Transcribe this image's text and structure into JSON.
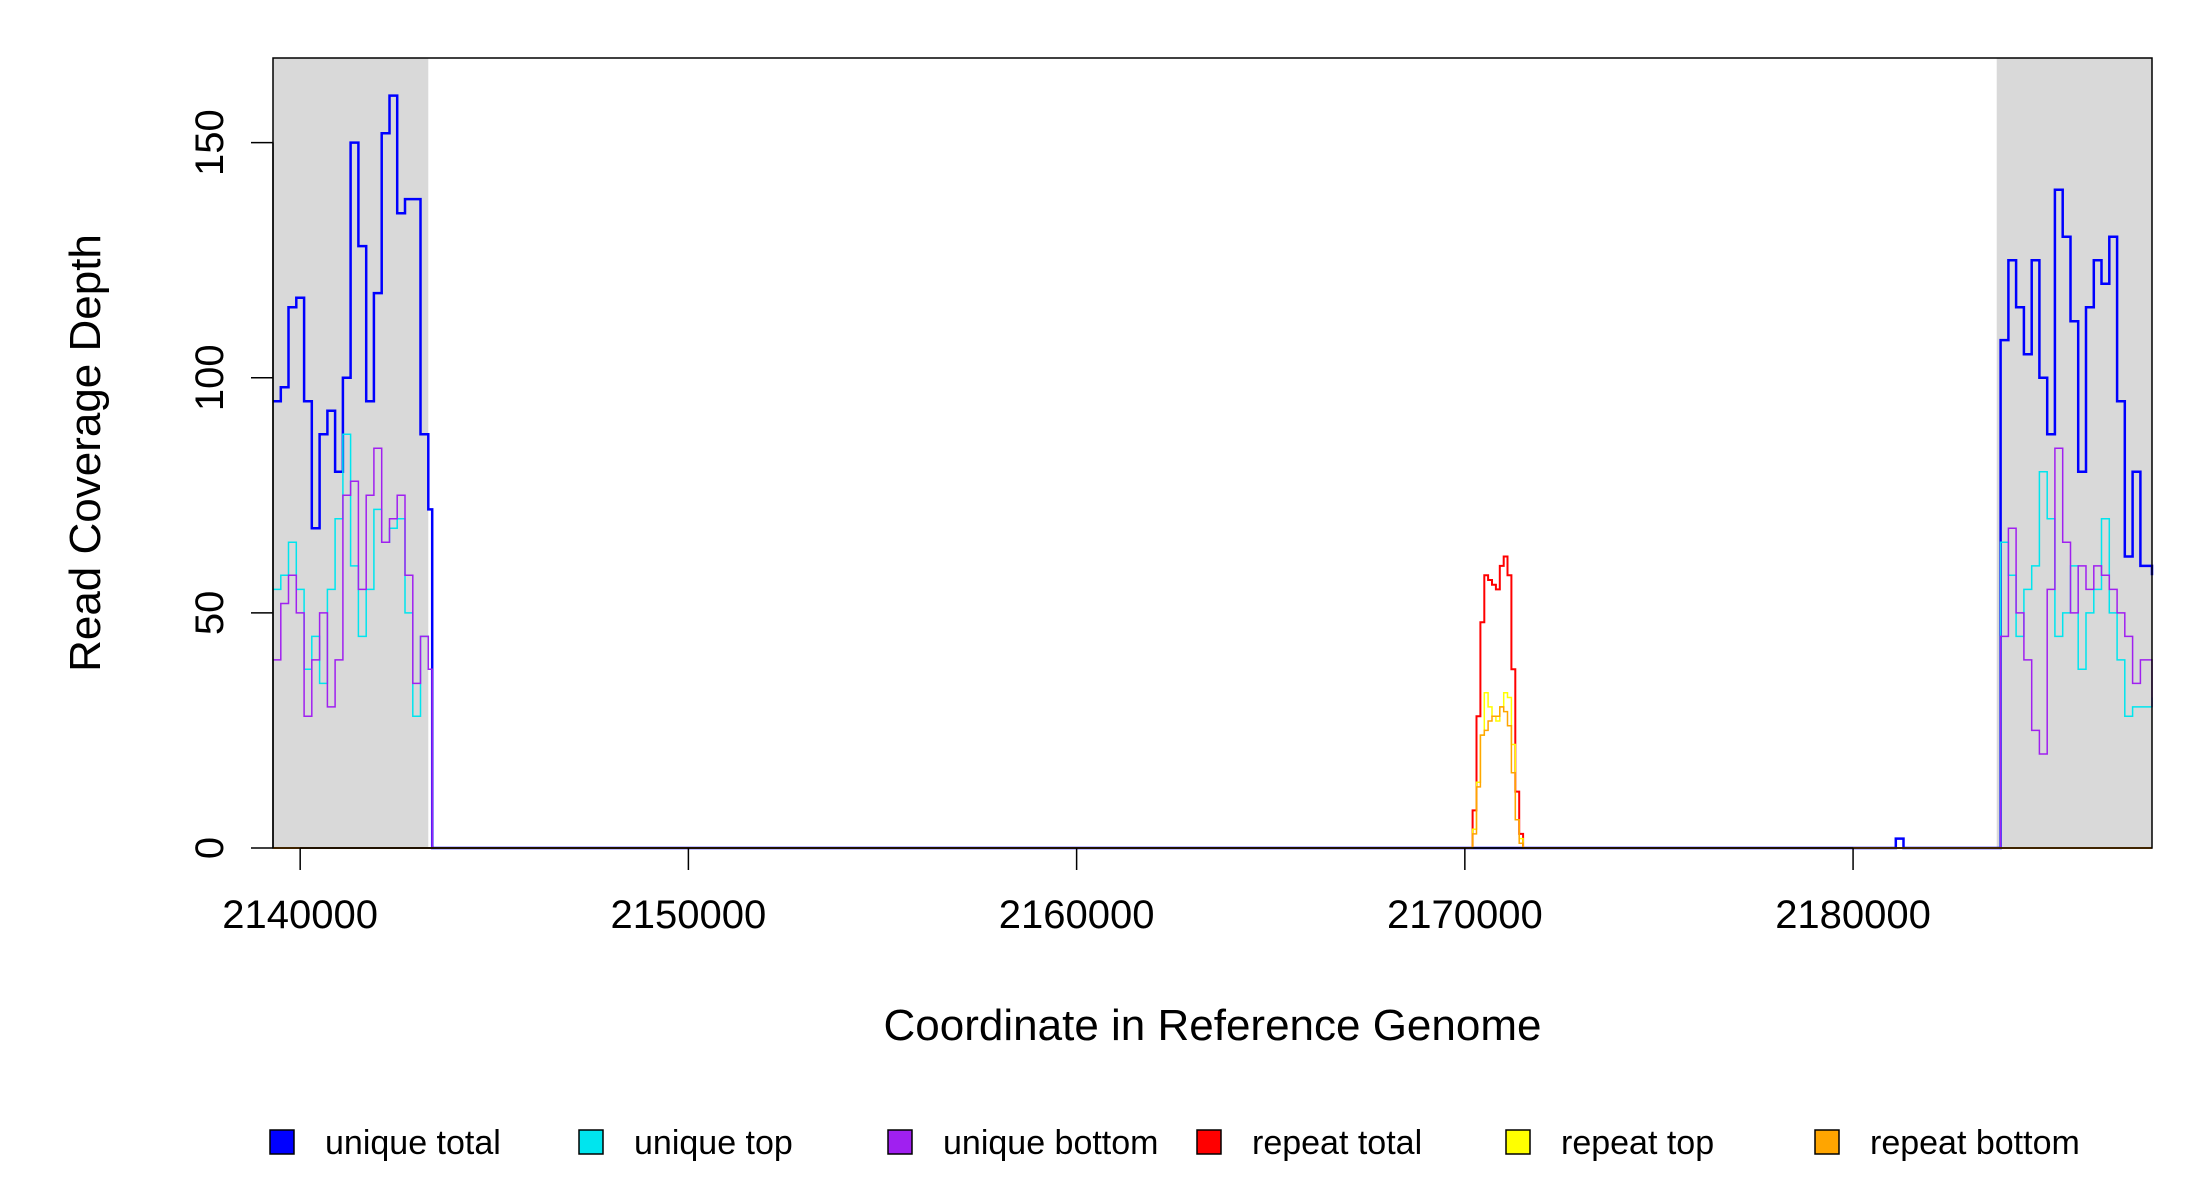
{
  "chart_data": {
    "type": "line",
    "title": "",
    "xlabel": "Coordinate in Reference Genome",
    "ylabel": "Read Coverage Depth",
    "xlim": [
      2139300,
      2187700
    ],
    "ylim": [
      0,
      168
    ],
    "x_ticks": [
      2140000,
      2150000,
      2160000,
      2170000,
      2180000
    ],
    "y_ticks": [
      0,
      50,
      100,
      150
    ],
    "x_tick_labels": [
      "2140000",
      "2150000",
      "2160000",
      "2170000",
      "2180000"
    ],
    "y_tick_labels": [
      "0",
      "50",
      "100",
      "150"
    ],
    "grid": false,
    "legend_position": "bottom",
    "shaded_regions": [
      {
        "x0": 2139300,
        "x1": 2143300,
        "color": "#d9d9d9"
      },
      {
        "x0": 2183700,
        "x1": 2187700,
        "color": "#d9d9d9"
      }
    ],
    "series": [
      {
        "name": "unique total",
        "color": "#0000ff",
        "width": 2.5,
        "x": [
          2139300,
          2139500,
          2139700,
          2139900,
          2140100,
          2140300,
          2140500,
          2140700,
          2140900,
          2141100,
          2141300,
          2141500,
          2141700,
          2141900,
          2142100,
          2142300,
          2142500,
          2142700,
          2142900,
          2143100,
          2143300,
          2143400,
          2170000,
          2181000,
          2181100,
          2181300,
          2183600,
          2183800,
          2184000,
          2184200,
          2184400,
          2184600,
          2184800,
          2185000,
          2185200,
          2185400,
          2185600,
          2185800,
          2186000,
          2186200,
          2186400,
          2186600,
          2186800,
          2187000,
          2187200,
          2187400,
          2187700
        ],
        "values": [
          95,
          98,
          115,
          117,
          95,
          68,
          88,
          93,
          80,
          100,
          150,
          128,
          95,
          118,
          152,
          160,
          135,
          138,
          138,
          88,
          72,
          0,
          0,
          0,
          2,
          0,
          0,
          108,
          125,
          115,
          105,
          125,
          100,
          88,
          140,
          130,
          112,
          80,
          115,
          125,
          120,
          130,
          95,
          62,
          80,
          60,
          58
        ]
      },
      {
        "name": "unique top",
        "color": "#00e5ee",
        "width": 1.5,
        "x": [
          2139300,
          2139500,
          2139700,
          2139900,
          2140100,
          2140300,
          2140500,
          2140700,
          2140900,
          2141100,
          2141300,
          2141500,
          2141700,
          2141900,
          2142100,
          2142300,
          2142500,
          2142700,
          2142900,
          2143100,
          2143300,
          2143400,
          2183600,
          2183800,
          2184000,
          2184200,
          2184400,
          2184600,
          2184800,
          2185000,
          2185200,
          2185400,
          2185600,
          2185800,
          2186000,
          2186200,
          2186400,
          2186600,
          2186800,
          2187000,
          2187200,
          2187400,
          2187700
        ],
        "values": [
          55,
          58,
          65,
          55,
          38,
          45,
          35,
          55,
          70,
          88,
          60,
          45,
          55,
          72,
          65,
          68,
          70,
          50,
          28,
          45,
          38,
          0,
          0,
          65,
          58,
          45,
          55,
          60,
          80,
          70,
          45,
          50,
          60,
          38,
          50,
          55,
          70,
          50,
          40,
          28,
          30,
          30,
          32
        ]
      },
      {
        "name": "unique bottom",
        "color": "#a020f0",
        "width": 1.5,
        "x": [
          2139300,
          2139500,
          2139700,
          2139900,
          2140100,
          2140300,
          2140500,
          2140700,
          2140900,
          2141100,
          2141300,
          2141500,
          2141700,
          2141900,
          2142100,
          2142300,
          2142500,
          2142700,
          2142900,
          2143100,
          2143300,
          2143400,
          2183600,
          2183800,
          2184000,
          2184200,
          2184400,
          2184600,
          2184800,
          2185000,
          2185200,
          2185400,
          2185600,
          2185800,
          2186000,
          2186200,
          2186400,
          2186600,
          2186800,
          2187000,
          2187200,
          2187400,
          2187700
        ],
        "values": [
          40,
          52,
          58,
          50,
          28,
          40,
          50,
          30,
          40,
          75,
          78,
          55,
          75,
          85,
          65,
          70,
          75,
          58,
          35,
          45,
          38,
          0,
          0,
          45,
          68,
          50,
          40,
          25,
          20,
          55,
          85,
          65,
          50,
          60,
          55,
          60,
          58,
          55,
          50,
          45,
          35,
          40,
          30
        ]
      },
      {
        "name": "repeat total",
        "color": "#ff0000",
        "width": 2,
        "x": [
          2139300,
          2170100,
          2170200,
          2170300,
          2170400,
          2170500,
          2170600,
          2170700,
          2170800,
          2170900,
          2171000,
          2171100,
          2171200,
          2171300,
          2171400,
          2171500,
          2187700
        ],
        "values": [
          0,
          0,
          8,
          28,
          48,
          58,
          57,
          56,
          55,
          60,
          62,
          58,
          38,
          12,
          3,
          0,
          0
        ]
      },
      {
        "name": "repeat top",
        "color": "#ffff00",
        "width": 1.5,
        "x": [
          2139300,
          2170100,
          2170200,
          2170300,
          2170400,
          2170500,
          2170600,
          2170700,
          2170800,
          2170900,
          2171000,
          2171100,
          2171200,
          2171300,
          2171400,
          2171500,
          2187700
        ],
        "values": [
          0,
          0,
          4,
          14,
          24,
          33,
          30,
          28,
          27,
          30,
          33,
          32,
          22,
          6,
          2,
          0,
          0
        ]
      },
      {
        "name": "repeat bottom",
        "color": "#ffa500",
        "width": 1.5,
        "x": [
          2139300,
          2170100,
          2170200,
          2170300,
          2170400,
          2170500,
          2170600,
          2170700,
          2170800,
          2170900,
          2171000,
          2171100,
          2171200,
          2171300,
          2171400,
          2171500,
          2187700
        ],
        "values": [
          0,
          0,
          3,
          13,
          24,
          25,
          27,
          28,
          28,
          30,
          29,
          26,
          16,
          6,
          1,
          0,
          0
        ]
      }
    ]
  }
}
